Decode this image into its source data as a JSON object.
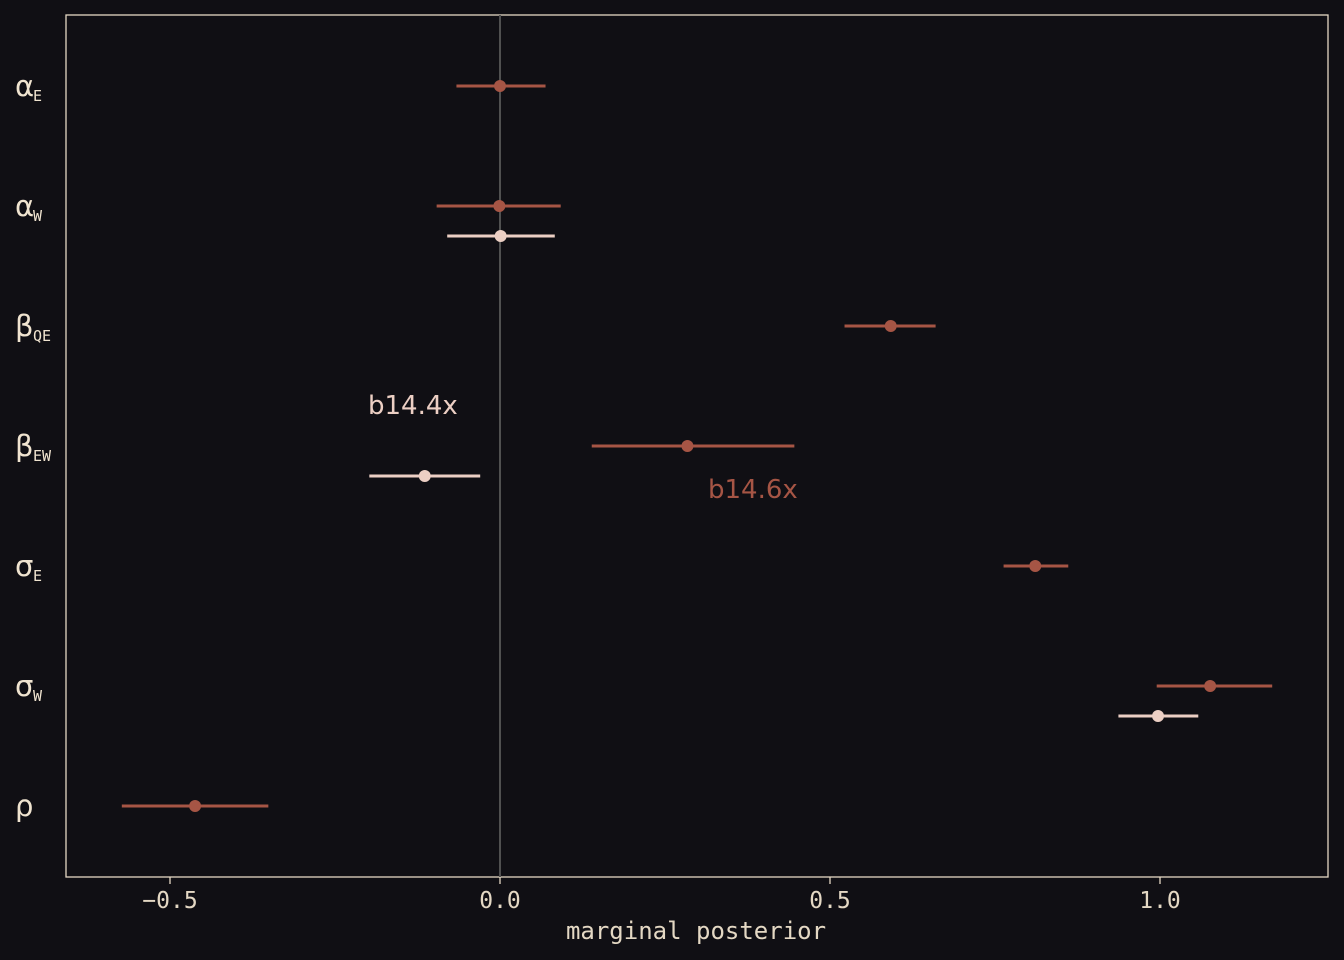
{
  "chart_data": {
    "type": "scatter",
    "subtype": "coefficient-interval-plot",
    "xlabel": "marginal posterior",
    "xlim": [
      -0.65,
      1.27
    ],
    "x_ticks": [
      -0.5,
      0.0,
      0.5,
      1.0
    ],
    "x_tick_labels": [
      "−0.5",
      "0.0",
      "0.5",
      "1.0"
    ],
    "reference_line_x": 0,
    "grid": false,
    "parameters": [
      {
        "symbol": "α",
        "sub": "E"
      },
      {
        "symbol": "α",
        "sub": "W"
      },
      {
        "symbol": "β",
        "sub": "QE"
      },
      {
        "symbol": "β",
        "sub": "EW"
      },
      {
        "symbol": "σ",
        "sub": "E"
      },
      {
        "symbol": "σ",
        "sub": "W"
      },
      {
        "symbol": "ρ",
        "sub": ""
      }
    ],
    "series": [
      {
        "name": "b14.6x",
        "color": "#a65545",
        "points": [
          {
            "param": 0,
            "mean": 0.0,
            "lo": -0.066,
            "hi": 0.069
          },
          {
            "param": 1,
            "mean": -0.001,
            "lo": -0.096,
            "hi": 0.092
          },
          {
            "param": 2,
            "mean": 0.592,
            "lo": 0.522,
            "hi": 0.66
          },
          {
            "param": 3,
            "mean": 0.284,
            "lo": 0.139,
            "hi": 0.446
          },
          {
            "param": 4,
            "mean": 0.811,
            "lo": 0.763,
            "hi": 0.861
          },
          {
            "param": 5,
            "mean": 1.076,
            "lo": 0.995,
            "hi": 1.17
          },
          {
            "param": 6,
            "mean": -0.462,
            "lo": -0.573,
            "hi": -0.351
          }
        ]
      },
      {
        "name": "b14.4x",
        "color": "#eccfc4",
        "points": [
          {
            "param": 1,
            "mean": 0.001,
            "lo": -0.08,
            "hi": 0.083
          },
          {
            "param": 3,
            "mean": -0.114,
            "lo": -0.198,
            "hi": -0.03
          },
          {
            "param": 5,
            "mean": 0.997,
            "lo": 0.937,
            "hi": 1.058
          }
        ]
      }
    ],
    "annotations": [
      {
        "text": "b14.4x",
        "series": 1
      },
      {
        "text": "b14.6x",
        "series": 0
      }
    ]
  }
}
